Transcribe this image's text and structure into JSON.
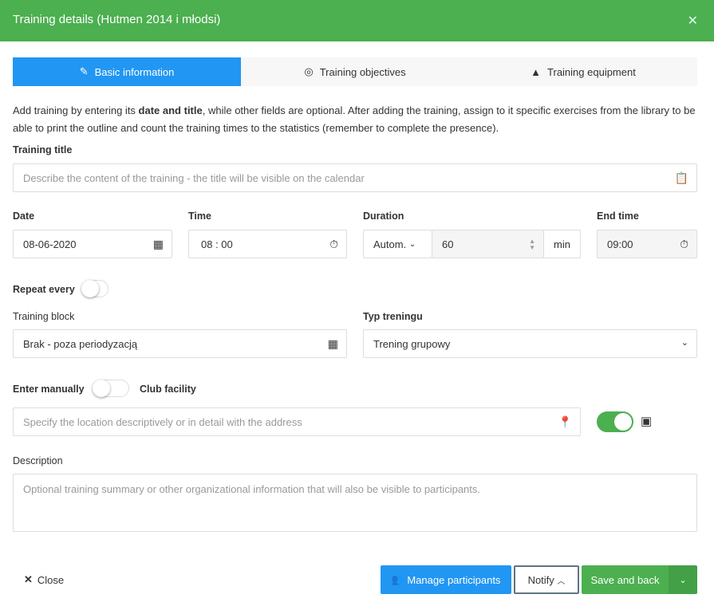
{
  "header": {
    "title": "Training details (Hutmen 2014 i młodsi)",
    "close_icon": "close-icon"
  },
  "tabs": [
    {
      "label": "Basic information",
      "icon": "edit-icon",
      "active": true
    },
    {
      "label": "Training objectives",
      "icon": "target-icon"
    },
    {
      "label": "Training equipment",
      "icon": "cone-icon"
    }
  ],
  "intro": {
    "before": "Add training by entering its ",
    "bold": "date and title",
    "after": ", while other fields are optional. After adding the training, assign to it specific exercises from the library to be able to print the outline and count the training times to the statistics (remember to complete the presence)."
  },
  "title_field": {
    "label": "Training title",
    "placeholder": "Describe the content of the training - the title will be visible on the calendar"
  },
  "date": {
    "label": "Date",
    "value": "08-06-2020"
  },
  "time": {
    "label": "Time",
    "value": "08 : 00"
  },
  "duration": {
    "label": "Duration",
    "mode": "Autom.",
    "value": "60",
    "unit": "min"
  },
  "end_time": {
    "label": "End time",
    "value": "09:00"
  },
  "repeat": {
    "label": "Repeat every",
    "on": false
  },
  "block": {
    "label": "Training block",
    "value": "Brak - poza periodyzacją"
  },
  "type": {
    "label": "Typ treningu",
    "value": "Trening grupowy"
  },
  "location": {
    "manual_label": "Enter manually",
    "manual_on": false,
    "facility_label": "Club facility",
    "placeholder": "Specify the location descriptively or in detail with the address",
    "facility_on": true
  },
  "description": {
    "label": "Description",
    "placeholder": "Optional training summary or other organizational information that will also be visible to participants."
  },
  "footer": {
    "close": "Close",
    "manage": "Manage participants",
    "notify": "Notify",
    "save": "Save and back"
  },
  "colors": {
    "header": "#4caf50",
    "primary": "#2196f3",
    "success": "#4caf50"
  }
}
